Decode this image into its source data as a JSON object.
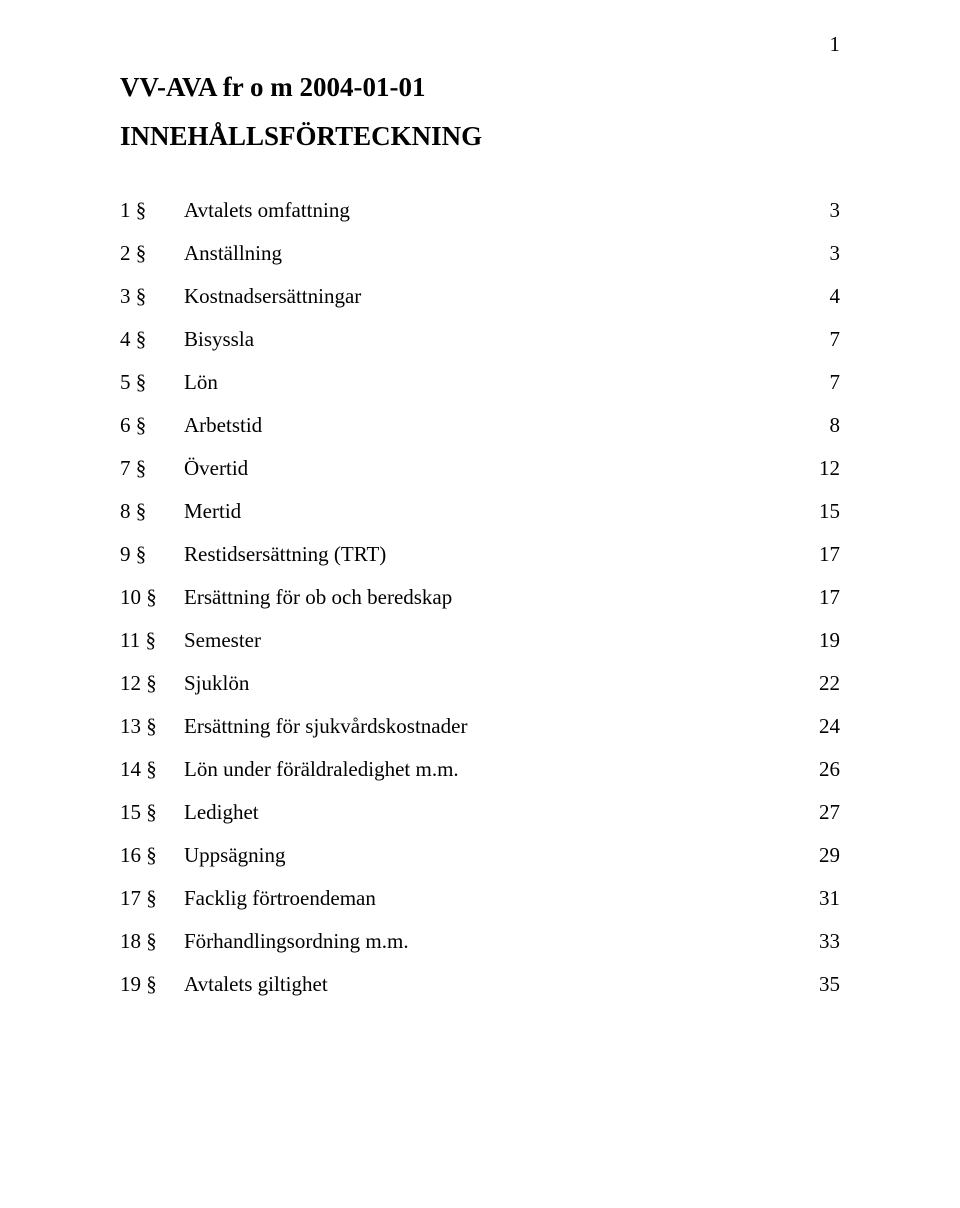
{
  "page_number": "1",
  "title": "VV-AVA fr o m 2004-01-01",
  "subtitle": "INNEHÅLLSFÖRTECKNING",
  "toc": [
    {
      "section": "1 §",
      "name": "Avtalets omfattning",
      "page": "3"
    },
    {
      "section": "2 §",
      "name": "Anställning",
      "page": "3"
    },
    {
      "section": "3 §",
      "name": "Kostnadsersättningar",
      "page": "4"
    },
    {
      "section": "4 §",
      "name": "Bisyssla",
      "page": "7"
    },
    {
      "section": "5 §",
      "name": "Lön",
      "page": "7"
    },
    {
      "section": "6 §",
      "name": "Arbetstid",
      "page": "8"
    },
    {
      "section": "7 §",
      "name": "Övertid",
      "page": "12"
    },
    {
      "section": "8 §",
      "name": "Mertid",
      "page": "15"
    },
    {
      "section": "9 §",
      "name": "Restidsersättning (TRT)",
      "page": "17"
    },
    {
      "section": "10 §",
      "name": "Ersättning för ob och beredskap",
      "page": "17"
    },
    {
      "section": "11 §",
      "name": "Semester",
      "page": "19"
    },
    {
      "section": "12 §",
      "name": "Sjuklön",
      "page": "22"
    },
    {
      "section": "13 §",
      "name": "Ersättning för sjukvårdskostnader",
      "page": "24"
    },
    {
      "section": "14 §",
      "name": "Lön under föräldraledighet m.m.",
      "page": "26"
    },
    {
      "section": "15 §",
      "name": "Ledighet",
      "page": "27"
    },
    {
      "section": "16 §",
      "name": "Uppsägning",
      "page": "29"
    },
    {
      "section": "17 §",
      "name": "Facklig förtroendeman",
      "page": "31"
    },
    {
      "section": "18 §",
      "name": "Förhandlingsordning m.m.",
      "page": "33"
    },
    {
      "section": "19 §",
      "name": "Avtalets giltighet",
      "page": "35"
    }
  ]
}
